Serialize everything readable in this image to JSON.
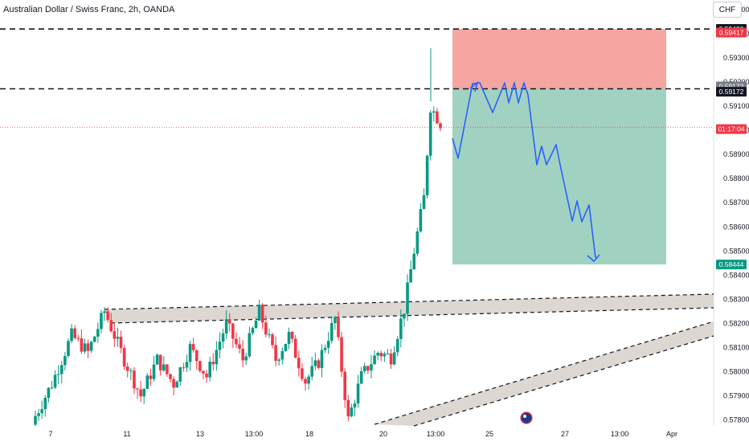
{
  "title": "Australian Dollar / Swiss Franc, 2h, OANDA",
  "currency_button": "CHF",
  "chart_data": {
    "type": "candlestick",
    "y_ticks": [
      0.578,
      0.579,
      0.58,
      0.581,
      0.582,
      0.583,
      0.584,
      0.585,
      0.586,
      0.587,
      0.588,
      0.589,
      0.59,
      0.591,
      0.592,
      0.593,
      0.594,
      0.595
    ],
    "y_tick_labels": [
      "0.57800",
      "0.57900",
      "0.58000",
      "0.58100",
      "0.58200",
      "0.58300",
      "0.58400",
      "0.58500",
      "0.58600",
      "0.58700",
      "0.58800",
      "0.58900",
      "0.59000",
      "0.59100",
      "0.59200",
      "0.59300",
      "0.59400",
      "0.59500"
    ],
    "ylim": [
      0.57775,
      0.5954
    ],
    "x_labels": [
      "7",
      "11",
      "13",
      "13:00",
      "18",
      "20",
      "13:00",
      "25",
      "27",
      "13:00",
      "Apr"
    ],
    "price_tags": [
      {
        "label": "0.59420",
        "value": 0.5942,
        "color": "#131722"
      },
      {
        "label": "0.59417",
        "value": 0.59405,
        "color": "#f23645"
      },
      {
        "label": "0.59172",
        "value": 0.59182,
        "color": "#787b86"
      },
      {
        "label": "0.59172",
        "value": 0.5916,
        "color": "#131722"
      },
      {
        "label": "01:17:04",
        "value": 0.59005,
        "color": "#f23645"
      },
      {
        "label": "0.58444",
        "value": 0.58444,
        "color": "#089981"
      }
    ],
    "levels": {
      "resistance_top": 0.5942,
      "entry": 0.59172,
      "current": 0.59013,
      "target": 0.58444
    },
    "candles_up_color": "#089981",
    "candles_down_color": "#f23645",
    "stop_zone_color": "#f4a19b",
    "target_zone_color": "#9ccfbe",
    "projection_color": "#2962ff",
    "channel_fill_color": "#d8d3cc"
  }
}
